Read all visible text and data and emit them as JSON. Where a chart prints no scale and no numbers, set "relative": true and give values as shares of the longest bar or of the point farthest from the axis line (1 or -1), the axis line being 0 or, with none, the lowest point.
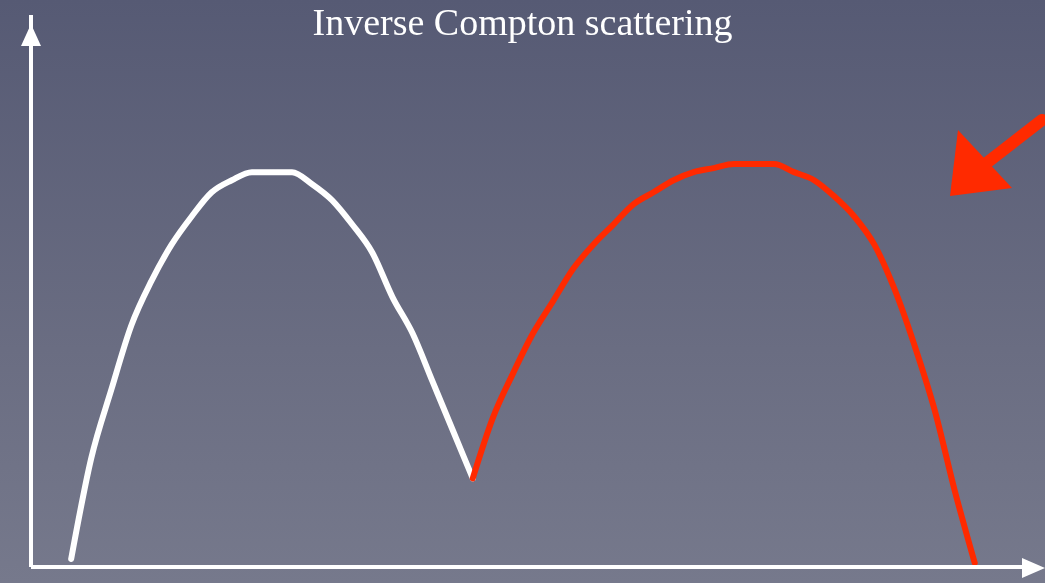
{
  "chart_data": {
    "type": "line",
    "title": "Inverse Compton scattering",
    "relative": true,
    "marker": "none",
    "categories": [
      null,
      null,
      null,
      null,
      null,
      null,
      null,
      null,
      null,
      null,
      null,
      null,
      null,
      null,
      null,
      null,
      null,
      null,
      null,
      null,
      null,
      null,
      null,
      null,
      null,
      null,
      null,
      null,
      null,
      null,
      null,
      null,
      null,
      null,
      null,
      null,
      null,
      null,
      null,
      null,
      null,
      null,
      null,
      null,
      null,
      null,
      null,
      null,
      null,
      null,
      null
    ],
    "series": [
      {
        "color": "#ffffff",
        "values": [
          null,
          null,
          0.02,
          0.27,
          0.44,
          0.6,
          0.71,
          0.8,
          0.87,
          0.93,
          0.96,
          0.98,
          0.98,
          0.98,
          0.95,
          0.91,
          0.85,
          0.78,
          0.67,
          0.58,
          0.46,
          0.34,
          0.22,
          null,
          null,
          null,
          null,
          null,
          null,
          null,
          null,
          null,
          null,
          null,
          null,
          null,
          null,
          null,
          null,
          null,
          null,
          null,
          null,
          null,
          null,
          null,
          null,
          null,
          null,
          null,
          null
        ]
      },
      {
        "color": "#ff2a00",
        "values": [
          null,
          null,
          null,
          null,
          null,
          null,
          null,
          null,
          null,
          null,
          null,
          null,
          null,
          null,
          null,
          null,
          null,
          null,
          null,
          null,
          null,
          null,
          0.22,
          0.37,
          0.48,
          0.58,
          0.66,
          0.74,
          0.8,
          0.85,
          0.9,
          0.93,
          0.96,
          0.98,
          0.99,
          1,
          1,
          1,
          0.98,
          0.96,
          0.92,
          0.87,
          0.8,
          0.69,
          0.55,
          0.39,
          0.19,
          0.01,
          null,
          null,
          null
        ]
      }
    ]
  }
}
